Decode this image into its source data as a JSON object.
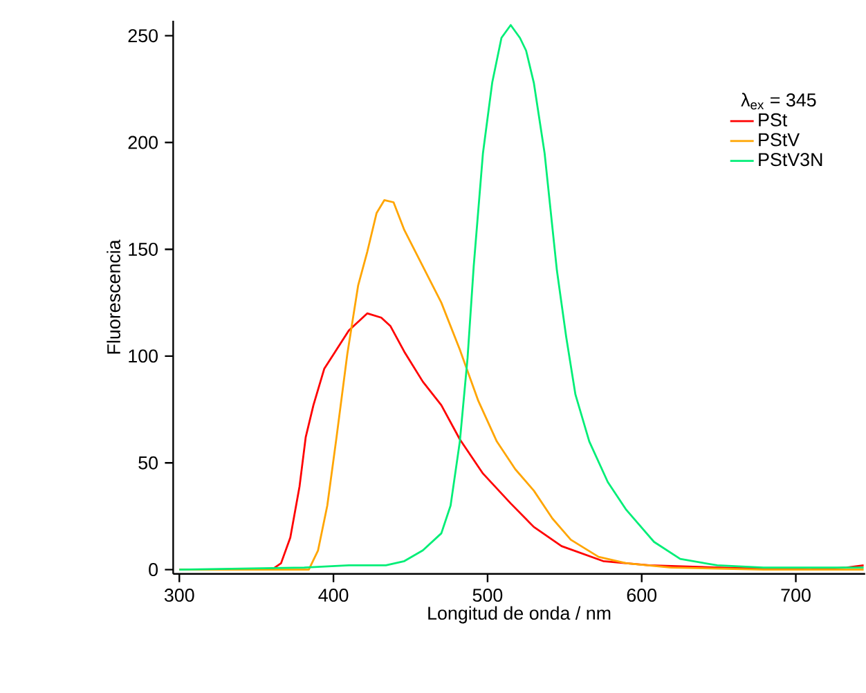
{
  "chart_data": {
    "type": "line",
    "xlabel": "Longitud de onda  /  nm",
    "ylabel": "Fluorescencia",
    "legend_title": "λ$_{ex}$ = 345",
    "xlim": [
      296,
      745
    ],
    "ylim": [
      -2,
      257
    ],
    "xticks": [
      300,
      400,
      500,
      600,
      700
    ],
    "yticks": [
      0,
      50,
      100,
      150,
      200,
      250
    ],
    "legend": "top right",
    "grid": false,
    "line_style": "solid",
    "marker": "none",
    "series": [
      {
        "name": "PSt",
        "color": "#ff0000",
        "x": [
          300,
          360,
          366,
          372,
          378,
          382,
          387,
          394,
          402,
          410,
          422,
          431,
          437,
          446,
          458,
          470,
          482,
          497,
          515,
          530,
          548,
          575,
          605,
          649,
          709,
          733,
          744
        ],
        "values": [
          0,
          0,
          3,
          15,
          39,
          62,
          77,
          94,
          103,
          112,
          120,
          118,
          114,
          102,
          88,
          77,
          61,
          45,
          31,
          20,
          11,
          4,
          2,
          1,
          0,
          1,
          2
        ]
      },
      {
        "name": "PStV",
        "color": "#ffa500",
        "x": [
          300,
          384,
          390,
          396,
          402,
          409,
          416,
          422,
          428,
          433,
          439,
          446,
          458,
          470,
          482,
          494,
          506,
          518,
          530,
          542,
          554,
          572,
          590,
          619,
          679,
          744
        ],
        "values": [
          0,
          0,
          9,
          30,
          62,
          101,
          133,
          149,
          167,
          173,
          172,
          159,
          142,
          125,
          103,
          79,
          60,
          47,
          37,
          24,
          14,
          6,
          3,
          1,
          0,
          0
        ]
      },
      {
        "name": "PStV3N",
        "color": "#00ee77",
        "x": [
          300,
          381,
          410,
          434,
          446,
          458,
          470,
          476,
          482,
          487,
          491,
          497,
          503,
          509,
          515,
          521,
          525,
          530,
          537,
          545,
          551,
          557,
          566,
          578,
          590,
          608,
          625,
          649,
          679,
          744
        ],
        "values": [
          0,
          1,
          2,
          2,
          4,
          9,
          17,
          30,
          60,
          99,
          142,
          195,
          228,
          249,
          255,
          249,
          243,
          228,
          195,
          140,
          109,
          82,
          60,
          41,
          28,
          13,
          5,
          2,
          1,
          1
        ]
      }
    ]
  }
}
